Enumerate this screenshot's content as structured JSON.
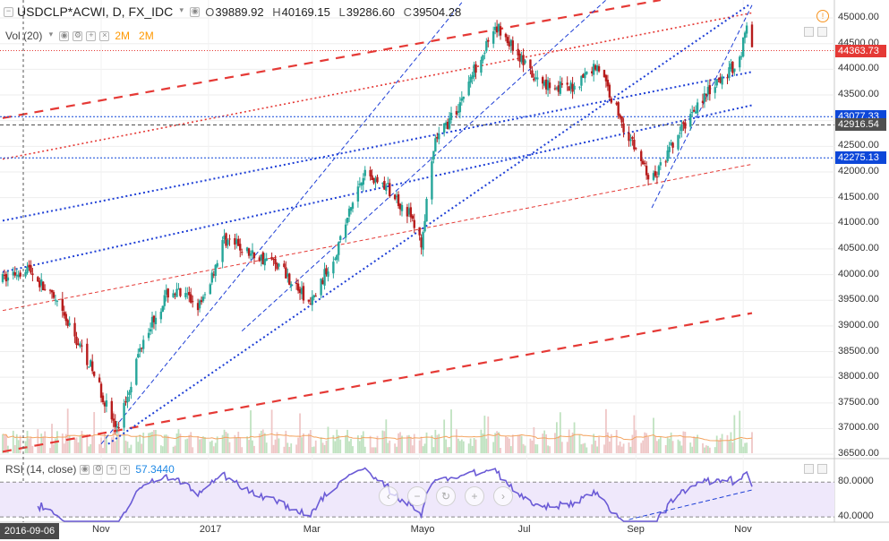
{
  "header": {
    "symbol": "USDCLP*ACWI, D, FX_IDC",
    "open_label": "O",
    "open": "39889.92",
    "high_label": "H",
    "high": "40169.15",
    "low_label": "L",
    "low": "39286.60",
    "close_label": "C",
    "close": "39504.28"
  },
  "volume_legend": {
    "label": "Vol (20)",
    "value1": "2M",
    "value2": "2M"
  },
  "rsi_legend": {
    "label": "RSI (14, close)",
    "value": "57.3440"
  },
  "price_tags": [
    {
      "text": "44363.73",
      "color": "#e53935",
      "price": 44363.73
    },
    {
      "text": "43077.33",
      "color": "#0d47d9",
      "price": 43077.33
    },
    {
      "text": "42916.54",
      "color": "#4f4f4f",
      "price": 42916.54
    },
    {
      "text": "42275.13",
      "color": "#0d47d9",
      "price": 42275.13
    }
  ],
  "rsi_scale": [
    "80.0000",
    "40.0000"
  ],
  "date_tag": "2016-09-06",
  "colors": {
    "up": "#26a69a",
    "down": "#b71c1c",
    "red_line": "#e53935",
    "blue_line": "#1e3fd6",
    "rsi": "#6b5bd6"
  },
  "chart_data": {
    "type": "candlestick",
    "title": "USDCLP*ACWI, D, FX_IDC",
    "ylim": [
      36450,
      45350
    ],
    "y_ticks": [
      "45000.00",
      "44500.00",
      "44000.00",
      "43500.00",
      "43000.00",
      "42500.00",
      "42000.00",
      "41500.00",
      "41000.00",
      "40500.00",
      "40000.00",
      "39500.00",
      "39000.00",
      "38500.00",
      "38000.00",
      "37500.00",
      "37000.00",
      "36500.00"
    ],
    "x_ticks": [
      "Nov",
      "2017",
      "Mar",
      "Mayo",
      "Jul",
      "Sep",
      "Nov"
    ],
    "anchor_points": [
      [
        "2016-09-06",
        39900
      ],
      [
        "2016-09-20",
        40150
      ],
      [
        "2016-10-05",
        39500
      ],
      [
        "2016-10-25",
        38300
      ],
      [
        "2016-11-10",
        36950
      ],
      [
        "2016-11-25",
        38800
      ],
      [
        "2016-12-10",
        39700
      ],
      [
        "2016-12-28",
        39400
      ],
      [
        "2017-01-10",
        40700
      ],
      [
        "2017-01-25",
        40400
      ],
      [
        "2017-02-10",
        40200
      ],
      [
        "2017-02-28",
        39400
      ],
      [
        "2017-03-15",
        40500
      ],
      [
        "2017-03-30",
        42000
      ],
      [
        "2017-04-12",
        41700
      ],
      [
        "2017-04-25",
        41200
      ],
      [
        "2017-05-02",
        40600
      ],
      [
        "2017-05-10",
        42600
      ],
      [
        "2017-05-22",
        43200
      ],
      [
        "2017-06-05",
        44300
      ],
      [
        "2017-06-15",
        44800
      ],
      [
        "2017-06-26",
        44300
      ],
      [
        "2017-07-05",
        43800
      ],
      [
        "2017-07-25",
        43600
      ],
      [
        "2017-08-10",
        44100
      ],
      [
        "2017-08-25",
        42900
      ],
      [
        "2017-09-10",
        41800
      ],
      [
        "2017-09-20",
        42400
      ],
      [
        "2017-10-05",
        43300
      ],
      [
        "2017-10-20",
        43800
      ],
      [
        "2017-10-30",
        44200
      ],
      [
        "2017-11-03",
        44900
      ],
      [
        "2017-11-06",
        44350
      ]
    ],
    "rsi_range": [
      25,
      95
    ],
    "rsi_levels": [
      70,
      30
    ],
    "rsi_last": 57.344,
    "volume_max_label": "2M",
    "grid": true
  }
}
